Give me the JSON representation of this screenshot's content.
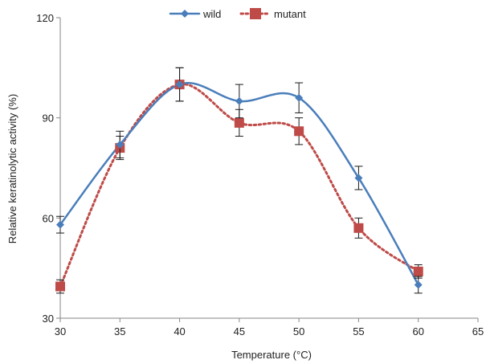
{
  "chart_data": {
    "type": "line",
    "title": "",
    "xlabel": "Temperature (°C)",
    "ylabel": "Relative keratinolytic activity (%)",
    "xlim": [
      30,
      65
    ],
    "ylim": [
      30,
      120
    ],
    "x_ticks": [
      30,
      35,
      40,
      45,
      50,
      55,
      60,
      65
    ],
    "y_ticks": [
      30,
      60,
      90,
      120
    ],
    "legend_position": "top",
    "grid": false,
    "series": [
      {
        "name": "wild",
        "color": "#4a7ebb",
        "line_style": "solid",
        "smooth": true,
        "marker": "diamond",
        "x": [
          30,
          35,
          40,
          45,
          50,
          55,
          60
        ],
        "y": [
          58,
          82,
          100,
          95,
          96,
          72,
          40
        ],
        "error": [
          2.5,
          4,
          5,
          5,
          4.5,
          3.5,
          2.5
        ]
      },
      {
        "name": "mutant",
        "color": "#be4b48",
        "line_style": "dotted",
        "smooth": true,
        "marker": "square",
        "x": [
          30,
          35,
          40,
          45,
          50,
          55,
          60
        ],
        "y": [
          39.5,
          81,
          100,
          88.5,
          86,
          57,
          44
        ],
        "error": [
          2,
          3.5,
          5,
          4,
          4,
          3,
          2
        ]
      }
    ]
  }
}
